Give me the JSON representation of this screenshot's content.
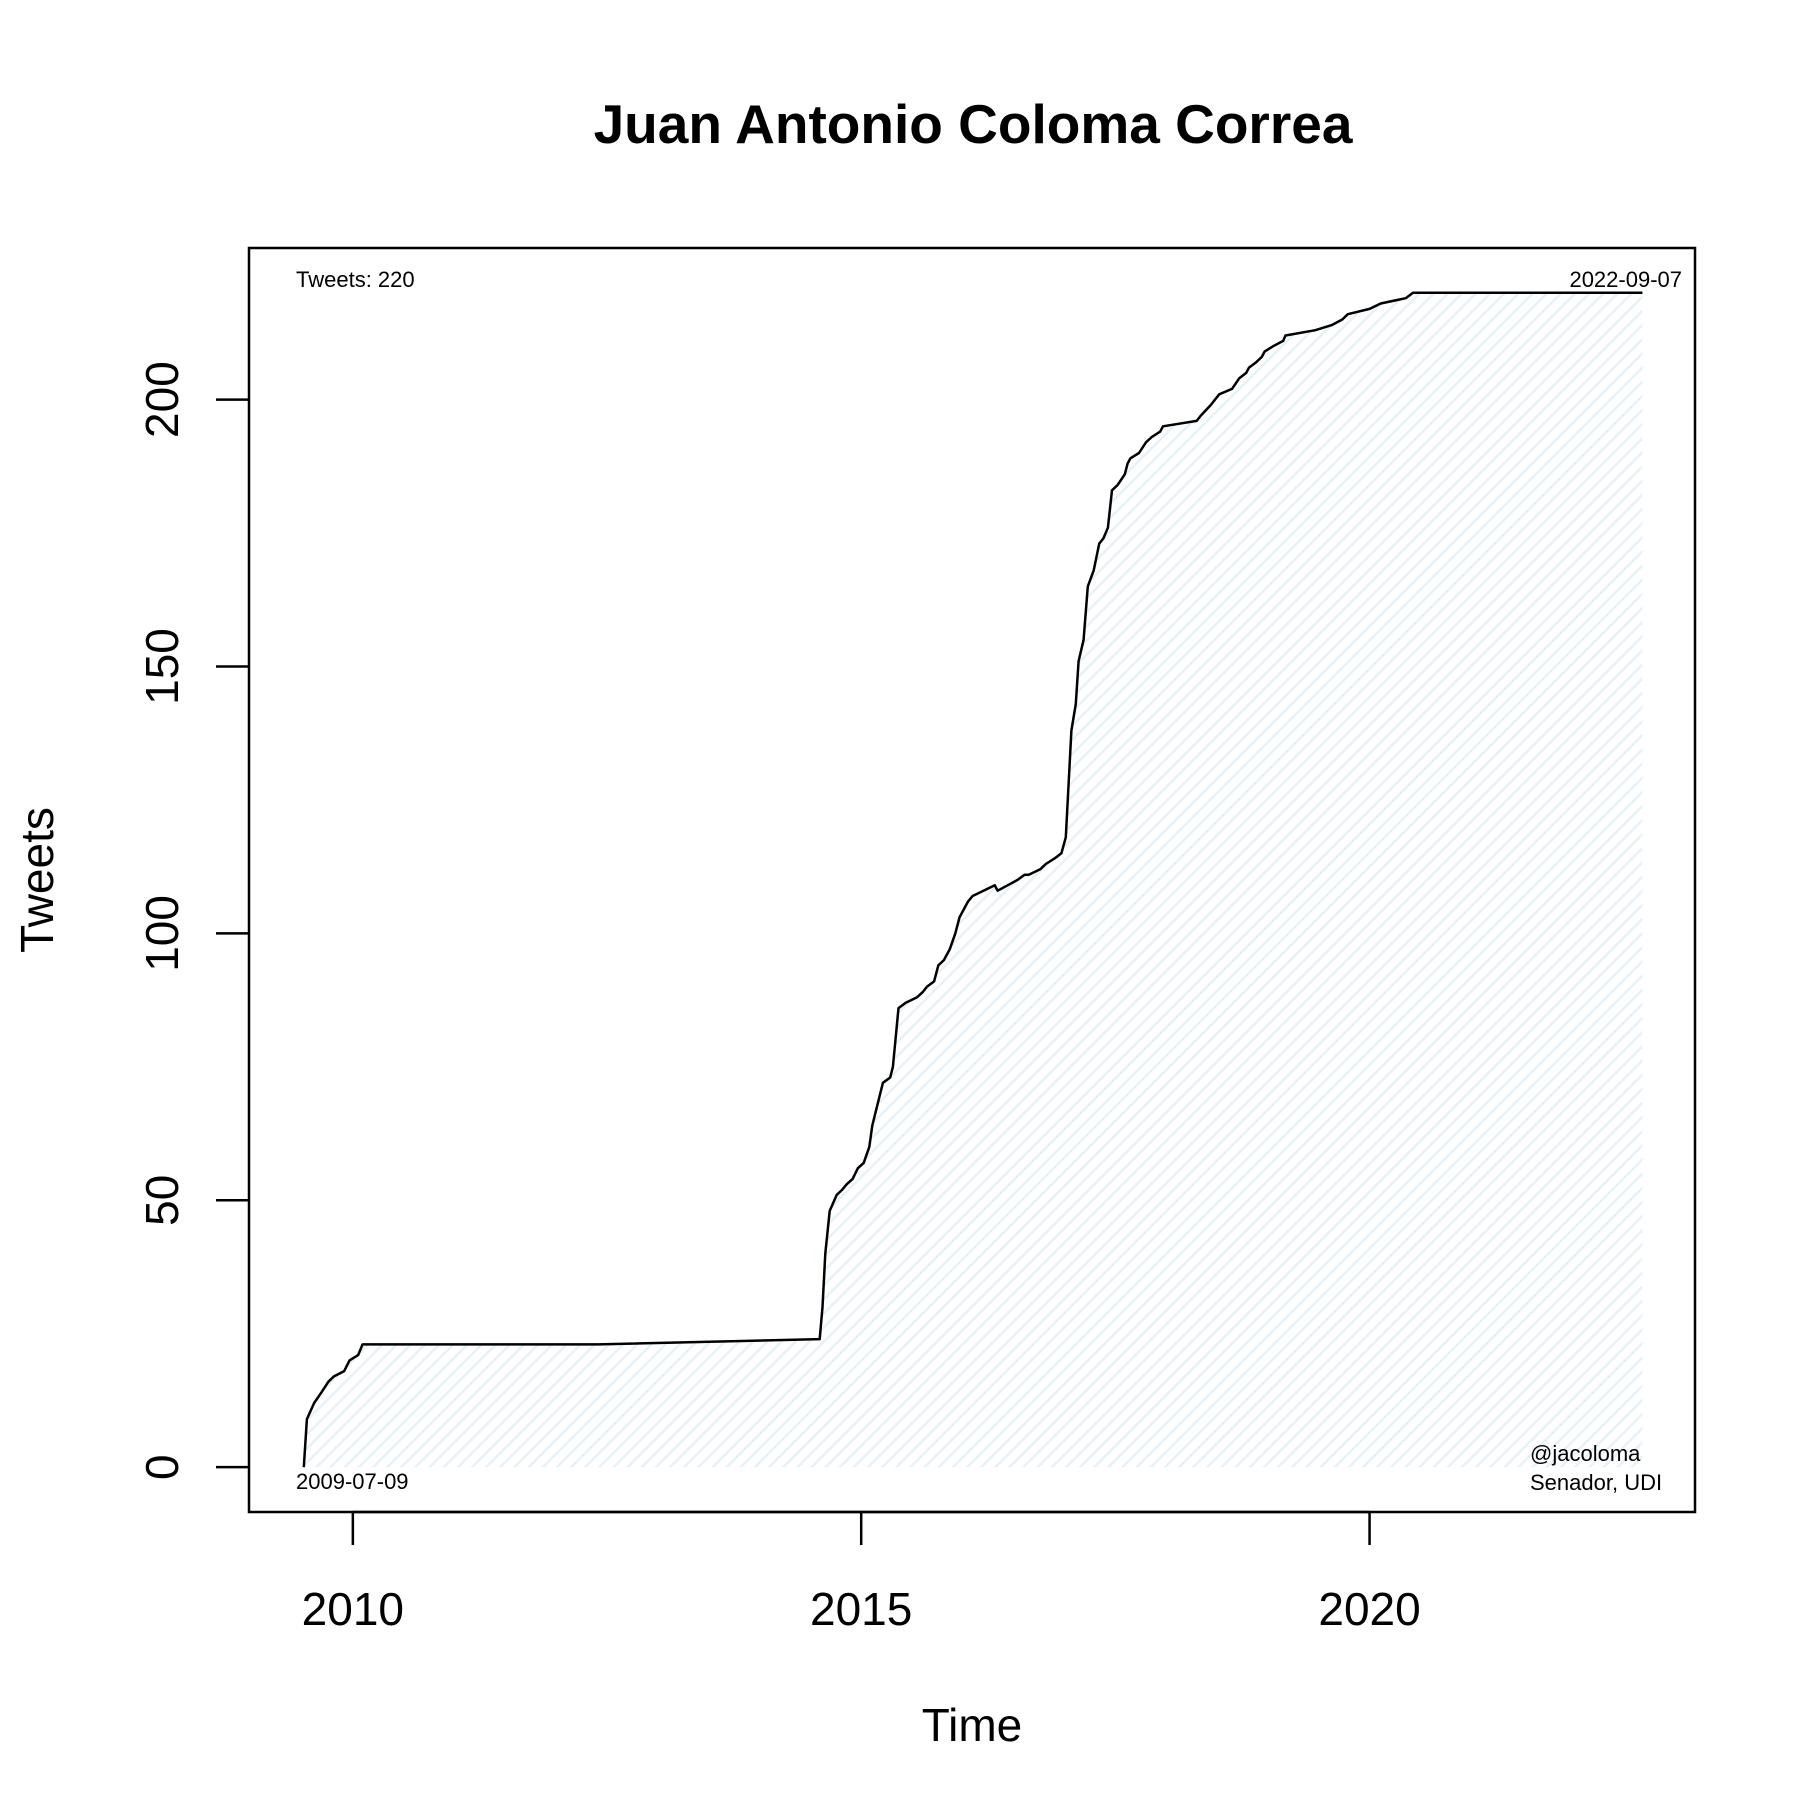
{
  "chart_data": {
    "type": "area",
    "title": "Juan Antonio Coloma Correa",
    "xlabel": "Time",
    "ylabel": "Tweets",
    "xlim": [
      "2008-12-24",
      "2023-03-15"
    ],
    "ylim": [
      -8.4,
      228.4
    ],
    "x_ticks": [
      "2010-01-01",
      "2015-01-01",
      "2020-01-01"
    ],
    "x_tick_labels": [
      "2010",
      "2015",
      "2020"
    ],
    "y_ticks": [
      0,
      50,
      100,
      150,
      200
    ],
    "y_tick_labels": [
      "0",
      "50",
      "100",
      "150",
      "200"
    ],
    "grid": false,
    "fill_color": "#e6f2f7",
    "line_color": "#000000",
    "annotations": {
      "top_left": "Tweets: 220",
      "top_right": "2022-09-07",
      "bottom_left": "2009-07-09",
      "bottom_right_1": "@jacoloma",
      "bottom_right_2": "Senador, UDI"
    },
    "series": [
      {
        "x": [
          "2009-07-09",
          "2009-07-20",
          "2009-08-15",
          "2009-09-10",
          "2009-10-05",
          "2009-10-25",
          "2009-12-01",
          "2009-12-20",
          "2010-01-20",
          "2010-02-05",
          "2012-06-01",
          "2014-08-05",
          "2014-08-15",
          "2014-08-25",
          "2014-09-10",
          "2014-10-05",
          "2014-10-25",
          "2014-11-10",
          "2014-12-01",
          "2014-12-20",
          "2015-01-10",
          "2015-01-30",
          "2015-02-10",
          "2015-03-20",
          "2015-04-15",
          "2015-04-25",
          "2015-05-15",
          "2015-06-10",
          "2015-07-20",
          "2015-08-10",
          "2015-08-25",
          "2015-09-20",
          "2015-10-05",
          "2015-10-25",
          "2015-11-15",
          "2015-12-05",
          "2015-12-20",
          "2016-01-20",
          "2016-02-05",
          "2016-04-25",
          "2016-05-05",
          "2016-06-10",
          "2016-07-15",
          "2016-08-10",
          "2016-08-25",
          "2016-10-05",
          "2016-10-25",
          "2016-11-25",
          "2016-12-20",
          "2017-01-05",
          "2017-01-25",
          "2017-02-10",
          "2017-02-20",
          "2017-03-10",
          "2017-03-25",
          "2017-04-15",
          "2017-05-05",
          "2017-05-20",
          "2017-06-05",
          "2017-06-20",
          "2017-07-10",
          "2017-08-05",
          "2017-08-15",
          "2017-08-25",
          "2017-09-25",
          "2017-10-20",
          "2017-11-10",
          "2017-12-10",
          "2017-12-20",
          "2018-04-20",
          "2018-05-05",
          "2018-06-10",
          "2018-06-25",
          "2018-07-10",
          "2018-08-25",
          "2018-09-20",
          "2018-10-15",
          "2018-10-25",
          "2018-11-20",
          "2018-12-10",
          "2018-12-20",
          "2019-01-20",
          "2019-02-25",
          "2019-03-05",
          "2019-06-20",
          "2019-08-20",
          "2019-09-25",
          "2019-10-15",
          "2020-01-01",
          "2020-02-10",
          "2020-05-10",
          "2020-06-05",
          "2021-06-05",
          "2021-06-20",
          "2021-07-10",
          "2022-01-10",
          "2022-03-25",
          "2022-09-01",
          "2022-09-07"
        ],
        "y": [
          0,
          9,
          12,
          14,
          16,
          17,
          18,
          20,
          21,
          23,
          23,
          24,
          30,
          40,
          48,
          51,
          52,
          53,
          54,
          56,
          57,
          60,
          64,
          72,
          73,
          75,
          86,
          87,
          88,
          89,
          90,
          91,
          94,
          95,
          97,
          100,
          103,
          106,
          107,
          109,
          108,
          109,
          110,
          111,
          111,
          112,
          113,
          114,
          115,
          118,
          138,
          143,
          151,
          155,
          165,
          168,
          173,
          174,
          176,
          183,
          184,
          186,
          188,
          189,
          190,
          192,
          193,
          194,
          195,
          196,
          197,
          199,
          200,
          201,
          202,
          204,
          205,
          206,
          207,
          208,
          209,
          210,
          211,
          212,
          213,
          214,
          215,
          216,
          217,
          218,
          219,
          220,
          220,
          220,
          220,
          220,
          220,
          220,
          220
        ],
        "y_note": "cumulative tweet count"
      }
    ]
  }
}
